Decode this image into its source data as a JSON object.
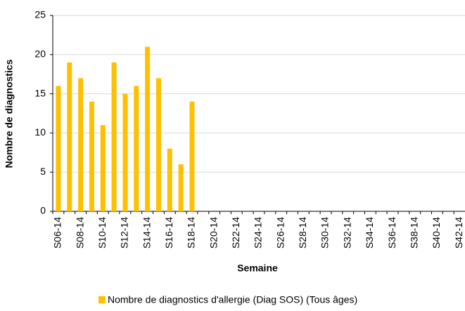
{
  "chart_data": {
    "type": "bar",
    "x_label": "Semaine",
    "y_label": "Nombre de diagnostics",
    "categories": [
      "S06-14",
      null,
      "S08-14",
      null,
      "S10-14",
      null,
      "S12-14",
      null,
      "S14-14",
      null,
      "S16-14",
      null,
      "S18-14",
      null,
      "S20-14",
      null,
      "S22-14",
      null,
      "S24-14",
      null,
      "S26-14",
      null,
      "S28-14",
      null,
      "S30-14",
      null,
      "S32-14",
      null,
      "S34-14",
      null,
      "S36-14",
      null,
      "S38-14",
      null,
      "S40-14",
      null,
      "S42-14"
    ],
    "series": [
      {
        "name": "Nombre de diagnostics d'allergie (Diag SOS) (Tous âges)",
        "color": "#ffc000",
        "values": [
          16,
          19,
          17,
          14,
          11,
          19,
          15,
          16,
          21,
          17,
          8,
          6,
          14,
          null,
          null,
          null,
          null,
          null,
          null,
          null,
          null,
          null,
          null,
          null,
          null,
          null,
          null,
          null,
          null,
          null,
          null,
          null,
          null,
          null,
          null,
          null,
          null
        ]
      }
    ],
    "ylim": [
      0,
      25
    ],
    "yticks": [
      0,
      5,
      10,
      15,
      20,
      25
    ],
    "grid": true,
    "legend": "bottom"
  }
}
